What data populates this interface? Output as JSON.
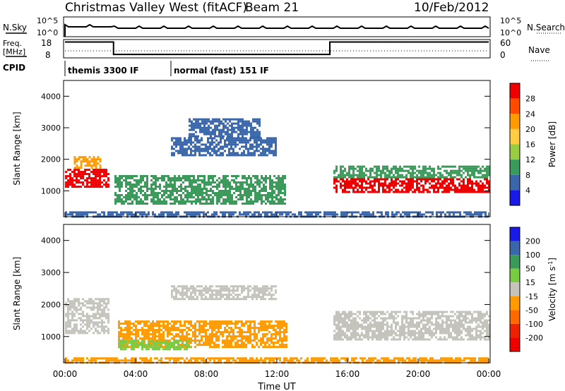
{
  "header": {
    "station": "Christmas Valley West (fitACF)",
    "beam": "Beam 21",
    "date": "10/Feb/2012"
  },
  "status_panel": {
    "nsky_label": "N.Sky",
    "nsearch_label": "N.Search",
    "freq_label": "Freq.",
    "freq_unit": "[MHz]",
    "nave_label": "Nave",
    "cpid_label": "CPID",
    "left_ticks_top": [
      "10^5",
      "10^0"
    ],
    "right_ticks_top": [
      "10^5",
      "10^0"
    ],
    "left_ticks_bottom": [
      "18",
      "8"
    ],
    "right_ticks_bottom": [
      "60",
      "0"
    ],
    "cpid_segments": [
      {
        "label": "themis 3300 IF",
        "start_h": 0.0,
        "end_h": 6.0
      },
      {
        "label": "normal (fast) 151 IF",
        "start_h": 6.0,
        "end_h": 24.0
      }
    ],
    "nave_steps": [
      {
        "start_h": 0.0,
        "end_h": 2.75,
        "value": 56
      },
      {
        "start_h": 2.75,
        "end_h": 15.0,
        "value": 8
      },
      {
        "start_h": 15.0,
        "end_h": 24.0,
        "value": 56
      }
    ]
  },
  "chart_data": [
    {
      "type": "heatmap",
      "title": "",
      "quantity": "Power",
      "ylabel": "Slant Range [km]",
      "xlabel": "",
      "xlim": [
        0,
        24
      ],
      "ylim": [
        180,
        4500
      ],
      "yticks": [
        1000,
        2000,
        3000,
        4000
      ],
      "xticks": [
        "00:00",
        "04:00",
        "08:00",
        "12:00",
        "16:00",
        "20:00",
        "00:00"
      ],
      "colorbar": {
        "label": "Power [dB]",
        "ticks": [
          "28",
          "24",
          "20",
          "16",
          "12",
          "8",
          "4"
        ],
        "colors": [
          "#ee0000",
          "#ff4a00",
          "#ff9a00",
          "#ffcc44",
          "#9acc44",
          "#3a9a5a",
          "#3a66aa",
          "#1a1ae6"
        ]
      },
      "regions": [
        {
          "t0": 0.0,
          "t1": 2.5,
          "r0": 1100,
          "r1": 1700,
          "color": "#ee0000"
        },
        {
          "t0": 0.5,
          "t1": 2.0,
          "r0": 1700,
          "r1": 2100,
          "color": "#ff9a00"
        },
        {
          "t0": 2.8,
          "t1": 12.5,
          "r0": 600,
          "r1": 1500,
          "color": "#3a9a5a"
        },
        {
          "t0": 6.0,
          "t1": 12.0,
          "r0": 2100,
          "r1": 2700,
          "color": "#3a66aa"
        },
        {
          "t0": 7.0,
          "t1": 11.0,
          "r0": 2700,
          "r1": 3300,
          "color": "#3a66aa"
        },
        {
          "t0": 15.2,
          "t1": 24.0,
          "r0": 950,
          "r1": 1400,
          "color": "#ee0000"
        },
        {
          "t0": 15.2,
          "t1": 24.0,
          "r0": 1400,
          "r1": 1800,
          "color": "#3a9a5a"
        },
        {
          "t0": 0.0,
          "t1": 24.0,
          "r0": 200,
          "r1": 350,
          "color": "#3a66aa"
        }
      ]
    },
    {
      "type": "heatmap",
      "title": "",
      "quantity": "Velocity",
      "ylabel": "Slant Range [km]",
      "xlabel": "Time UT",
      "xlim": [
        0,
        24
      ],
      "ylim": [
        180,
        4500
      ],
      "yticks": [
        1000,
        2000,
        3000,
        4000
      ],
      "xticks": [
        "00:00",
        "04:00",
        "08:00",
        "12:00",
        "16:00",
        "20:00",
        "00:00"
      ],
      "colorbar": {
        "label": "Velocity [m s",
        "label_sup": "-1",
        "label_end": "]",
        "ticks": [
          "200",
          "100",
          "50",
          "15",
          "-15",
          "-50",
          "-100",
          "-200"
        ],
        "colors": [
          "#1a1ae6",
          "#3a66aa",
          "#3a9a5a",
          "#77cc44",
          "#c4c4bc",
          "#ff9a00",
          "#ff6a00",
          "#ee2200",
          "#ee0000"
        ]
      },
      "regions": [
        {
          "t0": 0.0,
          "t1": 2.5,
          "r0": 1100,
          "r1": 2200,
          "color": "#c4c4bc"
        },
        {
          "t0": 3.0,
          "t1": 12.5,
          "r0": 700,
          "r1": 1500,
          "color": "#ff9a00"
        },
        {
          "t0": 6.0,
          "t1": 12.0,
          "r0": 2200,
          "r1": 2600,
          "color": "#c4c4bc"
        },
        {
          "t0": 15.2,
          "t1": 24.0,
          "r0": 900,
          "r1": 1800,
          "color": "#c4c4bc"
        },
        {
          "t0": 3.0,
          "t1": 7.0,
          "r0": 600,
          "r1": 900,
          "color": "#77cc44"
        },
        {
          "t0": 0.0,
          "t1": 24.0,
          "r0": 200,
          "r1": 350,
          "color": "#ff9a00"
        }
      ]
    }
  ]
}
